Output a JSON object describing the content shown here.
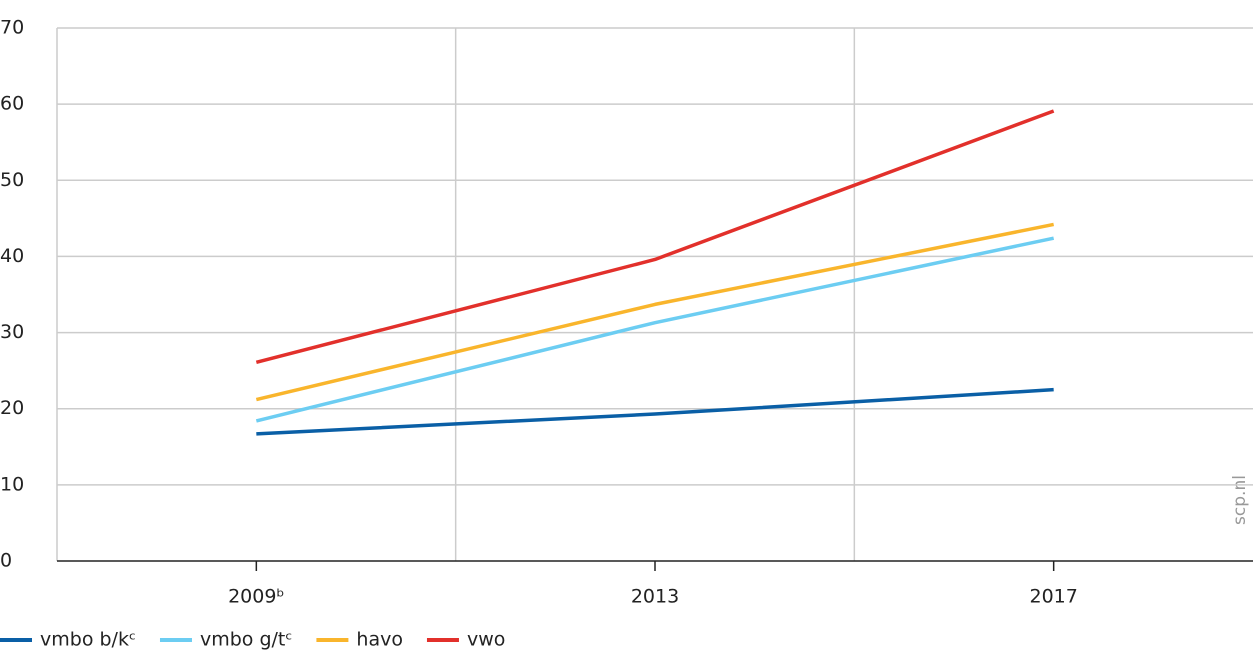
{
  "chart_data": {
    "type": "line",
    "categories": [
      "2009ᵇ",
      "2013",
      "2017"
    ],
    "series": [
      {
        "name": "vmbo b/kᶜ",
        "color": "#0a5fa6",
        "values": [
          16.7,
          19.3,
          22.5
        ]
      },
      {
        "name": "vmbo g/tᶜ",
        "color": "#6ccdf2",
        "values": [
          18.4,
          31.3,
          42.4
        ]
      },
      {
        "name": "havo",
        "color": "#f9b52c",
        "values": [
          21.2,
          33.7,
          44.2
        ]
      },
      {
        "name": "vwo",
        "color": "#e2302b",
        "values": [
          26.1,
          39.6,
          59.1
        ]
      }
    ],
    "ylim": [
      0,
      70
    ],
    "yticks": [
      0,
      10,
      20,
      30,
      40,
      50,
      60,
      70
    ],
    "grid": true,
    "legend": "bottom",
    "source": "scp.nl"
  }
}
